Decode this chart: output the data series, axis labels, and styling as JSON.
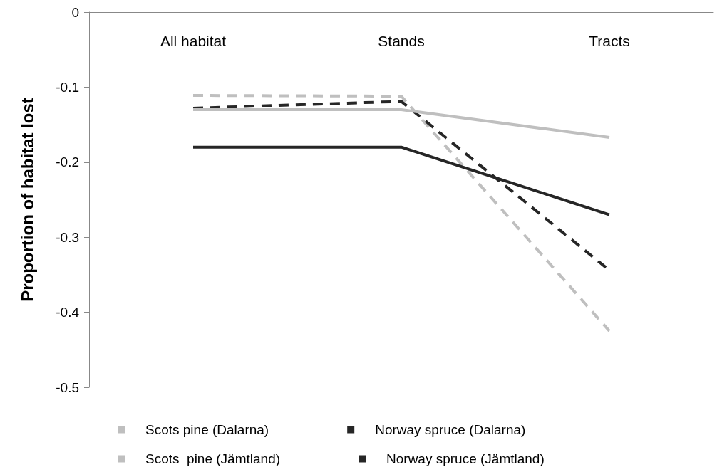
{
  "chart_data": {
    "type": "line",
    "ylabel": "Proportion of habitat lost",
    "categories": [
      "All habitat",
      "Stands",
      "Tracts"
    ],
    "series": [
      {
        "name": "Scots pine (Dalarna)",
        "color": "#bfbfbf",
        "line_style": "dashed",
        "values": [
          -0.111,
          -0.112,
          -0.425
        ]
      },
      {
        "name": "Norway spruce (Dalarna)",
        "color": "#262626",
        "line_style": "dashed",
        "values": [
          -0.128,
          -0.119,
          -0.344
        ]
      },
      {
        "name": "Scots  pine (Jämtland)",
        "color": "#bfbfbf",
        "line_style": "solid",
        "values": [
          -0.13,
          -0.13,
          -0.167
        ]
      },
      {
        "name": "Norway spruce (Jämtland)",
        "color": "#262626",
        "line_style": "solid",
        "values": [
          -0.18,
          -0.18,
          -0.27
        ]
      }
    ],
    "ylim": [
      -0.5,
      0
    ],
    "yticks": [
      0,
      -0.1,
      -0.2,
      -0.3,
      -0.4,
      -0.5
    ],
    "grid": false,
    "legend": "bottom",
    "marker": "none"
  }
}
